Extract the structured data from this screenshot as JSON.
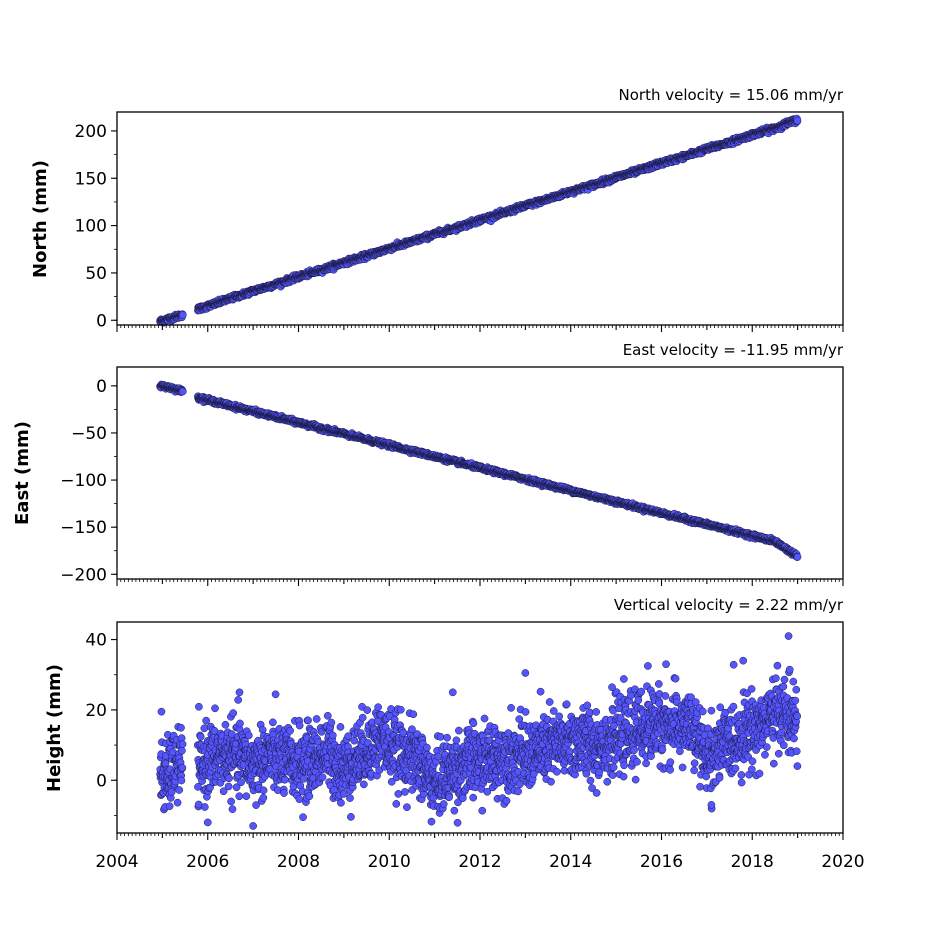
{
  "chart_data": [
    {
      "type": "scatter",
      "title": "North velocity = 15.06 mm/yr",
      "ylabel": "North (mm)",
      "xlabel": "",
      "xlim": [
        2004,
        2020
      ],
      "ylim": [
        -5,
        220
      ],
      "y_ticks": [
        0,
        50,
        100,
        150,
        200
      ],
      "x_tick_labels_visible": false,
      "velocity_mm_per_yr": 15.06,
      "series": [
        {
          "x": [
            2004.95,
            2005.1,
            2005.25,
            2005.4,
            2005.8,
            2006.0,
            2006.5,
            2007.0,
            2007.5,
            2008.0,
            2008.5,
            2009.0,
            2009.5,
            2010.0,
            2010.5,
            2011.0,
            2011.5,
            2012.0,
            2012.5,
            2013.0,
            2013.5,
            2014.0,
            2014.5,
            2015.0,
            2015.5,
            2016.0,
            2016.5,
            2017.0,
            2017.5,
            2018.0,
            2018.5,
            2019.0
          ],
          "y": [
            -1,
            1,
            3,
            5,
            12,
            15,
            23,
            31,
            38,
            46,
            53,
            61,
            68,
            76,
            83,
            91,
            98,
            106,
            113,
            121,
            128,
            136,
            143,
            151,
            158,
            166,
            173,
            181,
            188,
            196,
            203,
            212
          ]
        }
      ]
    },
    {
      "type": "scatter",
      "title": "East velocity = -11.95 mm/yr",
      "ylabel": "East (mm)",
      "xlabel": "",
      "xlim": [
        2004,
        2020
      ],
      "ylim": [
        -205,
        20
      ],
      "y_ticks": [
        0,
        -50,
        -100,
        -150,
        -200
      ],
      "y_tick_labels": [
        "0",
        "−50",
        "−100",
        "−150",
        "−200"
      ],
      "x_tick_labels_visible": false,
      "velocity_mm_per_yr": -11.95,
      "series": [
        {
          "x": [
            2004.95,
            2005.1,
            2005.25,
            2005.4,
            2005.8,
            2006.0,
            2006.5,
            2007.0,
            2007.5,
            2008.0,
            2008.5,
            2009.0,
            2009.5,
            2010.0,
            2010.5,
            2011.0,
            2011.5,
            2012.0,
            2012.5,
            2013.0,
            2013.5,
            2014.0,
            2014.5,
            2015.0,
            2015.5,
            2016.0,
            2016.5,
            2017.0,
            2017.5,
            2018.0,
            2018.5,
            2019.0
          ],
          "y": [
            0,
            -1,
            -3,
            -5,
            -12,
            -15,
            -21,
            -27,
            -33,
            -39,
            -45,
            -51,
            -57,
            -63,
            -69,
            -75,
            -81,
            -87,
            -93,
            -99,
            -105,
            -111,
            -117,
            -123,
            -129,
            -135,
            -141,
            -147,
            -153,
            -159,
            -165,
            -181
          ]
        }
      ]
    },
    {
      "type": "scatter",
      "title": "Vertical velocity = 2.22 mm/yr",
      "ylabel": "Height (mm)",
      "xlabel": "",
      "xlim": [
        2004,
        2020
      ],
      "ylim": [
        -15,
        45
      ],
      "y_ticks": [
        0,
        20,
        40
      ],
      "x_ticks": [
        2004,
        2006,
        2008,
        2010,
        2012,
        2014,
        2016,
        2018,
        2020
      ],
      "x_tick_labels": [
        "2004",
        "2006",
        "2008",
        "2010",
        "2012",
        "2014",
        "2016",
        "2018",
        "2020"
      ],
      "velocity_mm_per_yr": 2.22,
      "series": [
        {
          "x": [
            2004.95,
            2005.1,
            2005.3,
            2005.8,
            2006.0,
            2006.4,
            2006.8,
            2007.0,
            2007.4,
            2007.8,
            2008.2,
            2008.6,
            2009.0,
            2009.4,
            2009.8,
            2010.2,
            2010.6,
            2011.0,
            2011.4,
            2011.8,
            2012.2,
            2012.6,
            2013.0,
            2013.4,
            2013.8,
            2014.2,
            2014.6,
            2015.0,
            2015.4,
            2015.8,
            2016.2,
            2016.6,
            2017.0,
            2017.4,
            2017.8,
            2018.2,
            2018.6,
            2019.0
          ],
          "y": [
            2,
            0,
            5,
            3,
            6,
            7,
            6,
            4,
            7,
            5,
            5,
            8,
            3,
            8,
            12,
            8,
            6,
            -1,
            3,
            5,
            6,
            7,
            7,
            9,
            10,
            11,
            10,
            12,
            14,
            16,
            15,
            16,
            6,
            10,
            13,
            16,
            20,
            16
          ],
          "outliers": [
            {
              "x": 2004.98,
              "y": 19.5
            },
            {
              "x": 2006.7,
              "y": 25
            },
            {
              "x": 2011.4,
              "y": 25
            },
            {
              "x": 2013.0,
              "y": 30.5
            },
            {
              "x": 2015.7,
              "y": 32.5
            },
            {
              "x": 2016.1,
              "y": 33
            },
            {
              "x": 2017.8,
              "y": 34
            },
            {
              "x": 2018.8,
              "y": 41
            },
            {
              "x": 2006.0,
              "y": -12
            },
            {
              "x": 2007.0,
              "y": -13
            },
            {
              "x": 2008.1,
              "y": -10.5
            },
            {
              "x": 2017.1,
              "y": -7
            }
          ]
        }
      ]
    }
  ],
  "colors": {
    "marker_fill": "#5555ff",
    "marker_edge": "#1a1a40"
  }
}
